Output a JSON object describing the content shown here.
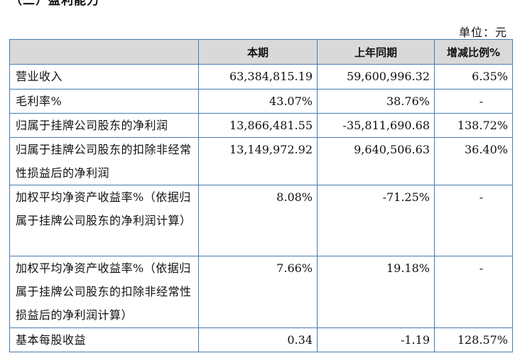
{
  "section": {
    "heading": "（二）盈利能力"
  },
  "unit": "单位：元",
  "table": {
    "headers": [
      "",
      "本期",
      "上年同期",
      "增减比例%"
    ],
    "rows": [
      {
        "label": "营业收入",
        "current": "63,384,815.19",
        "previous": "59,600,996.32",
        "change": "6.35%"
      },
      {
        "label": "毛利率%",
        "current": "43.07%",
        "previous": "38.76%",
        "change": "-"
      },
      {
        "label": "归属于挂牌公司股东的净利润",
        "current": "13,866,481.55",
        "previous": "-35,811,690.68",
        "change": "138.72%"
      },
      {
        "label": "归属于挂牌公司股东的扣除非经常性损益后的净利润",
        "current": "13,149,972.92",
        "previous": "9,640,506.63",
        "change": "36.40%"
      },
      {
        "label": "加权平均净资产收益率%（依据归属于挂牌公司股东的净利润计算）",
        "current": "8.08%",
        "previous": "-71.25%",
        "change": "-"
      },
      {
        "label": "加权平均净资产收益率%（依据归属于挂牌公司股东的扣除非经常性损益后的净利润计算）",
        "current": "7.66%",
        "previous": "19.18%",
        "change": "-"
      },
      {
        "label": "基本每股收益",
        "current": "0.34",
        "previous": "-1.19",
        "change": "128.57%"
      }
    ]
  }
}
